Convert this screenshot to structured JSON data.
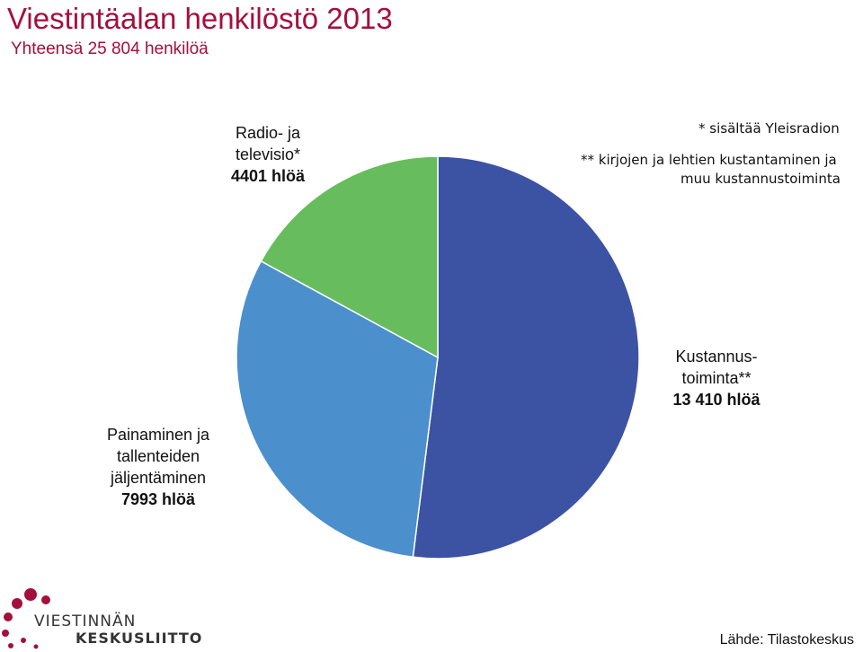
{
  "title": "Viestintäalan henkilöstö 2013",
  "subtitle": "Yhteensä 25 804 henkilöä",
  "notes": {
    "line1": "* sisältää Yleisradion",
    "line2a": "** kirjojen ja lehtien kustantaminen ja",
    "line2b": "muu kustannustoiminta"
  },
  "labels": {
    "radio": {
      "line1": "Radio- ja",
      "line2": "televisio*",
      "value": "4401 hlöä"
    },
    "publishing": {
      "line1": "Kustannus-",
      "line2": "toiminta**",
      "value": "13 410 hlöä"
    },
    "printing": {
      "line1": "Painaminen ja",
      "line2": "tallenteiden",
      "line3": "jäljentäminen",
      "value": "7993 hlöä"
    }
  },
  "logo": {
    "line1": "VIESTINNÄN",
    "line2": "KESKUSLIITTO"
  },
  "source": "Lähde: Tilastokeskus",
  "colors": {
    "title": "#a50f3d",
    "publishing": "#3c52a3",
    "printing": "#4b8fcd",
    "radio": "#67bd5e",
    "logo_dots": "#a50f3d"
  },
  "chart_data": {
    "type": "pie",
    "title": "Viestintäalan henkilöstö 2013",
    "subtitle": "Yhteensä 25 804 henkilöä",
    "slices": [
      {
        "label": "Kustannustoiminta**",
        "value": 13410,
        "color": "#3c52a3"
      },
      {
        "label": "Painaminen ja tallenteiden jäljentäminen",
        "value": 7993,
        "color": "#4b8fcd"
      },
      {
        "label": "Radio- ja televisio*",
        "value": 4401,
        "color": "#67bd5e"
      }
    ],
    "start": "top",
    "direction": "clockwise",
    "legend": "none"
  }
}
